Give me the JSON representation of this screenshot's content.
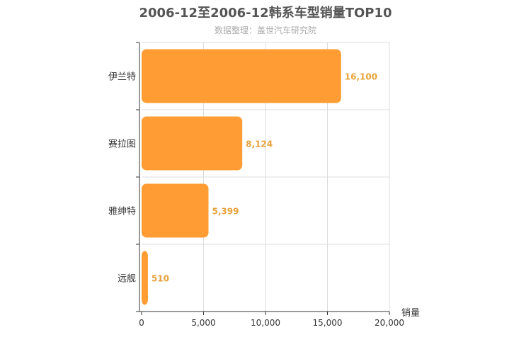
{
  "chart_data": {
    "type": "bar",
    "orientation": "horizontal",
    "title": "2006-12至2006-12韩系车型销量TOP10",
    "subtitle": "数据整理：盖世汽车研究院",
    "categories": [
      "伊兰特",
      "赛拉图",
      "雅绅特",
      "远舰"
    ],
    "values": [
      16100,
      8124,
      5399,
      510
    ],
    "value_labels": [
      "16,100",
      "8,124",
      "5,399",
      "510"
    ],
    "xlabel": "销量",
    "xlim": [
      0,
      20000
    ],
    "x_ticks": [
      0,
      5000,
      10000,
      15000,
      20000
    ],
    "x_tick_labels": [
      "0",
      "5,000",
      "10,000",
      "15,000",
      "20,000"
    ],
    "grid": true,
    "colors": {
      "bar": "#ff9c33",
      "value_label": "#e8a23c",
      "grid": "#dddddd",
      "axis": "#333333"
    }
  }
}
